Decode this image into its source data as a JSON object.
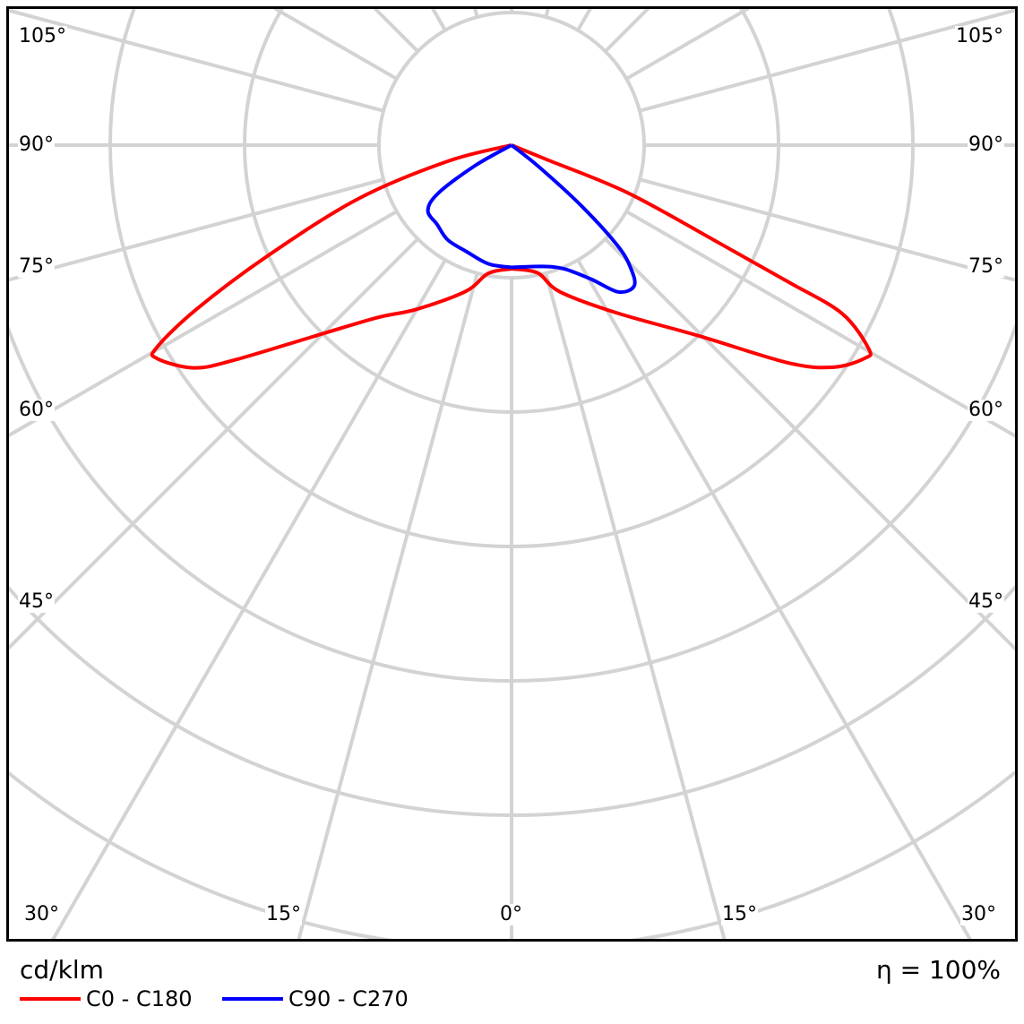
{
  "chart_data": {
    "type": "polar",
    "unit": "cd/klm",
    "efficiency_label": "η = 100%",
    "angle_labels_left": [
      "105°",
      "90°",
      "75°",
      "60°",
      "45°",
      "30°"
    ],
    "angle_labels_bottom": [
      "30°",
      "15°",
      "0°",
      "15°",
      "30°"
    ],
    "angle_step_deg": 15,
    "ring_count": 6,
    "ring_labels": [],
    "grid": true,
    "legend_placement": "bottom-left",
    "series": [
      {
        "name": "C0 - C180",
        "color": "#ff0000",
        "halves": [
          {
            "side": "right",
            "points": [
              [
                0,
                0.92
              ],
              [
                11.5,
                0.97
              ],
              [
                18.3,
                1.15
              ],
              [
                32.3,
                1.48
              ],
              [
                44.5,
                1.99
              ],
              [
                51.8,
                2.62
              ],
              [
                55.4,
                2.91
              ],
              [
                58.9,
                3.07
              ],
              [
                60.3,
                3.06
              ],
              [
                63,
                2.76
              ],
              [
                63.7,
                2.3
              ],
              [
                64.8,
                1.69
              ],
              [
                67.7,
                0.93
              ],
              [
                67.7,
                0.28
              ],
              [
                70,
                0
              ]
            ]
          },
          {
            "side": "left",
            "points": [
              [
                0,
                0.92
              ],
              [
                10.3,
                0.97
              ],
              [
                17.4,
                1.14
              ],
              [
                30,
                1.41
              ],
              [
                38,
                1.63
              ],
              [
                46,
                2.05
              ],
              [
                52.3,
                2.62
              ],
              [
                55,
                2.89
              ],
              [
                59,
                3.08
              ],
              [
                60.3,
                3.04
              ],
              [
                62.5,
                2.64
              ],
              [
                65.6,
                1.99
              ],
              [
                70.7,
                1.21
              ],
              [
                75.8,
                0.49
              ],
              [
                80,
                0
              ]
            ]
          }
        ]
      },
      {
        "name": "C90 - C270",
        "color": "#0000ff",
        "halves": [
          {
            "side": "right",
            "points": [
              [
                0,
                0.91
              ],
              [
                14,
                0.93
              ],
              [
                23,
                1.0
              ],
              [
                30.7,
                1.16
              ],
              [
                36,
                1.35
              ],
              [
                41,
                1.39
              ],
              [
                44,
                1.28
              ],
              [
                46.5,
                1.09
              ],
              [
                49,
                0.69
              ],
              [
                51.6,
                0.25
              ],
              [
                55,
                0
              ]
            ]
          },
          {
            "side": "left",
            "points": [
              [
                0,
                0.91
              ],
              [
                11,
                0.9
              ],
              [
                23,
                0.86
              ],
              [
                34,
                0.85
              ],
              [
                43,
                0.81
              ],
              [
                52,
                0.79
              ],
              [
                56.8,
                0.65
              ],
              [
                60.7,
                0.31
              ],
              [
                65,
                0
              ]
            ]
          }
        ]
      }
    ]
  }
}
